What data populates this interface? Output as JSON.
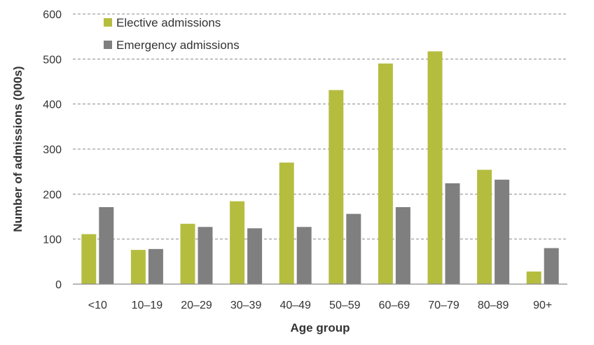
{
  "chart_data": {
    "type": "bar",
    "xlabel": "Age group",
    "ylabel": "Number of admissions (000s)",
    "categories": [
      "<10",
      "10–19",
      "20–29",
      "30–39",
      "40–49",
      "50–59",
      "60–69",
      "70–79",
      "80–89",
      "90+"
    ],
    "series": [
      {
        "name": "Elective admissions",
        "color": "#b5bd3f",
        "values": [
          111,
          76,
          134,
          184,
          270,
          431,
          490,
          517,
          254,
          28
        ]
      },
      {
        "name": "Emergency admissions",
        "color": "#7f7f7f",
        "values": [
          171,
          78,
          127,
          124,
          127,
          156,
          171,
          224,
          232,
          80
        ]
      }
    ],
    "ylim": [
      0,
      600
    ],
    "yticks": [
      0,
      100,
      200,
      300,
      400,
      500,
      600
    ],
    "grid": true,
    "legend_position": "top-left"
  }
}
